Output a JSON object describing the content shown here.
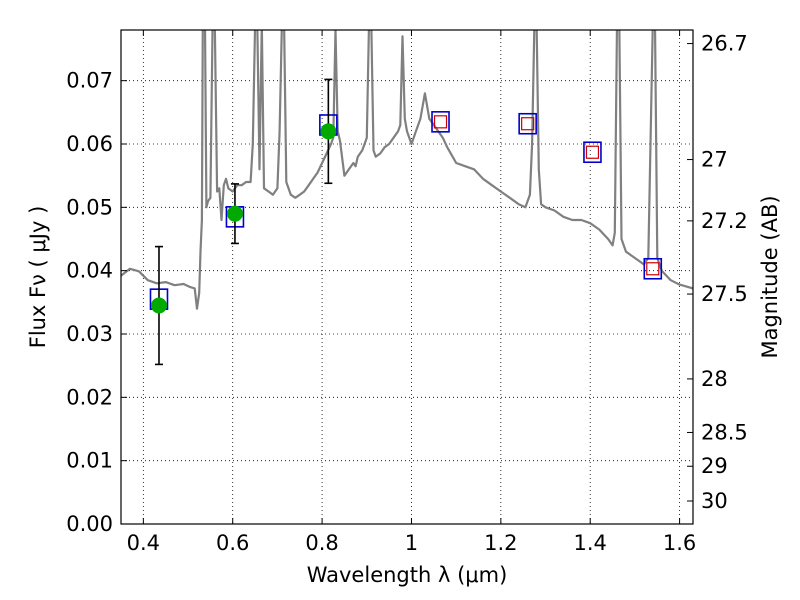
{
  "chart_data": {
    "type": "scatter",
    "xlabel": "Wavelength  λ (μm)",
    "ylabel": "Flux  Fν  ( μJy )",
    "ylabel_right": "Magnitude (AB)",
    "xlim": [
      0.35,
      1.63
    ],
    "ylim": [
      0.0,
      0.078
    ],
    "grid": true,
    "x_ticks": [
      0.4,
      0.6,
      0.8,
      1.0,
      1.2,
      1.4,
      1.6
    ],
    "x_tick_labels": [
      "0.4",
      "0.6",
      "0.8",
      "1",
      "1.2",
      "1.4",
      "1.6"
    ],
    "y_ticks": [
      0.0,
      0.01,
      0.02,
      0.03,
      0.04,
      0.05,
      0.06,
      0.07
    ],
    "y_tick_labels": [
      "0.00",
      "0.01",
      "0.02",
      "0.03",
      "0.04",
      "0.05",
      "0.06",
      "0.07"
    ],
    "right_ticks": [
      {
        "label": "26.7",
        "mag": 26.7
      },
      {
        "label": "27",
        "mag": 27.0
      },
      {
        "label": "27.2",
        "mag": 27.2
      },
      {
        "label": "27.5",
        "mag": 27.5
      },
      {
        "label": "28",
        "mag": 28.0
      },
      {
        "label": "28.5",
        "mag": 28.5
      },
      {
        "label": "29",
        "mag": 29.0
      },
      {
        "label": "30",
        "mag": 30.0
      }
    ],
    "colors": {
      "spectrum": "#808080",
      "observed": "#00aa00",
      "model_box": "#0000cc",
      "model_inner": "#cc0000",
      "errorbar": "#000000"
    },
    "series": [
      {
        "kind": "spectrum",
        "points": [
          [
            0.35,
            0.0392
          ],
          [
            0.37,
            0.0403
          ],
          [
            0.39,
            0.0399
          ],
          [
            0.41,
            0.0385
          ],
          [
            0.43,
            0.038
          ],
          [
            0.45,
            0.0382
          ],
          [
            0.47,
            0.0377
          ],
          [
            0.49,
            0.0379
          ],
          [
            0.505,
            0.0374
          ],
          [
            0.515,
            0.0372
          ],
          [
            0.52,
            0.034
          ],
          [
            0.525,
            0.0365
          ],
          [
            0.528,
            0.043
          ],
          [
            0.531,
            0.048
          ],
          [
            0.533,
            0.079
          ],
          [
            0.538,
            0.079
          ],
          [
            0.541,
            0.05
          ],
          [
            0.545,
            0.051
          ],
          [
            0.55,
            0.0515
          ],
          [
            0.555,
            0.079
          ],
          [
            0.56,
            0.079
          ],
          [
            0.565,
            0.0525
          ],
          [
            0.57,
            0.053
          ],
          [
            0.575,
            0.048
          ],
          [
            0.58,
            0.0535
          ],
          [
            0.585,
            0.0545
          ],
          [
            0.59,
            0.053
          ],
          [
            0.6,
            0.0525
          ],
          [
            0.61,
            0.0535
          ],
          [
            0.62,
            0.0535
          ],
          [
            0.63,
            0.054
          ],
          [
            0.64,
            0.054
          ],
          [
            0.645,
            0.06
          ],
          [
            0.65,
            0.079
          ],
          [
            0.655,
            0.079
          ],
          [
            0.66,
            0.056
          ],
          [
            0.665,
            0.079
          ],
          [
            0.67,
            0.053
          ],
          [
            0.68,
            0.0525
          ],
          [
            0.69,
            0.052
          ],
          [
            0.7,
            0.053
          ],
          [
            0.705,
            0.062
          ],
          [
            0.71,
            0.079
          ],
          [
            0.715,
            0.079
          ],
          [
            0.72,
            0.054
          ],
          [
            0.73,
            0.052
          ],
          [
            0.74,
            0.0515
          ],
          [
            0.75,
            0.052
          ],
          [
            0.76,
            0.0525
          ],
          [
            0.77,
            0.0535
          ],
          [
            0.78,
            0.0545
          ],
          [
            0.79,
            0.0555
          ],
          [
            0.8,
            0.057
          ],
          [
            0.81,
            0.0585
          ],
          [
            0.82,
            0.06
          ],
          [
            0.825,
            0.061
          ],
          [
            0.83,
            0.078
          ],
          [
            0.835,
            0.062
          ],
          [
            0.84,
            0.0605
          ],
          [
            0.85,
            0.055
          ],
          [
            0.86,
            0.056
          ],
          [
            0.87,
            0.057
          ],
          [
            0.875,
            0.0565
          ],
          [
            0.88,
            0.058
          ],
          [
            0.89,
            0.059
          ],
          [
            0.9,
            0.061
          ],
          [
            0.905,
            0.079
          ],
          [
            0.91,
            0.079
          ],
          [
            0.915,
            0.059
          ],
          [
            0.92,
            0.058
          ],
          [
            0.93,
            0.0585
          ],
          [
            0.94,
            0.0595
          ],
          [
            0.95,
            0.06
          ],
          [
            0.96,
            0.061
          ],
          [
            0.97,
            0.062
          ],
          [
            0.975,
            0.063
          ],
          [
            0.98,
            0.077
          ],
          [
            0.985,
            0.064
          ],
          [
            0.99,
            0.062
          ],
          [
            1.0,
            0.06
          ],
          [
            1.01,
            0.062
          ],
          [
            1.02,
            0.064
          ],
          [
            1.03,
            0.068
          ],
          [
            1.04,
            0.064
          ],
          [
            1.05,
            0.063
          ],
          [
            1.06,
            0.062
          ],
          [
            1.07,
            0.061
          ],
          [
            1.08,
            0.0595
          ],
          [
            1.1,
            0.057
          ],
          [
            1.12,
            0.0565
          ],
          [
            1.14,
            0.056
          ],
          [
            1.16,
            0.0545
          ],
          [
            1.18,
            0.0535
          ],
          [
            1.2,
            0.0525
          ],
          [
            1.22,
            0.0515
          ],
          [
            1.24,
            0.0505
          ],
          [
            1.255,
            0.05
          ],
          [
            1.265,
            0.052
          ],
          [
            1.27,
            0.06
          ],
          [
            1.275,
            0.079
          ],
          [
            1.28,
            0.079
          ],
          [
            1.285,
            0.056
          ],
          [
            1.29,
            0.0505
          ],
          [
            1.3,
            0.05
          ],
          [
            1.32,
            0.0495
          ],
          [
            1.34,
            0.0485
          ],
          [
            1.36,
            0.048
          ],
          [
            1.38,
            0.048
          ],
          [
            1.4,
            0.0475
          ],
          [
            1.42,
            0.0465
          ],
          [
            1.44,
            0.045
          ],
          [
            1.45,
            0.044
          ],
          [
            1.455,
            0.046
          ],
          [
            1.46,
            0.079
          ],
          [
            1.465,
            0.079
          ],
          [
            1.47,
            0.045
          ],
          [
            1.48,
            0.043
          ],
          [
            1.5,
            0.042
          ],
          [
            1.52,
            0.041
          ],
          [
            1.53,
            0.042
          ],
          [
            1.54,
            0.079
          ],
          [
            1.545,
            0.079
          ],
          [
            1.55,
            0.042
          ],
          [
            1.56,
            0.04
          ],
          [
            1.58,
            0.0385
          ],
          [
            1.6,
            0.0378
          ],
          [
            1.63,
            0.0372
          ]
        ]
      },
      {
        "kind": "observed",
        "points": [
          {
            "x": 0.435,
            "y": 0.0345,
            "err": 0.0093
          },
          {
            "x": 0.605,
            "y": 0.049,
            "err": 0.0047
          },
          {
            "x": 0.814,
            "y": 0.062,
            "err": 0.0082
          }
        ]
      },
      {
        "kind": "model",
        "points": [
          {
            "x": 0.435,
            "y": 0.0355,
            "inner": false
          },
          {
            "x": 0.605,
            "y": 0.0485,
            "inner": false
          },
          {
            "x": 0.814,
            "y": 0.063,
            "inner": false
          },
          {
            "x": 1.065,
            "y": 0.0635,
            "inner": true
          },
          {
            "x": 1.26,
            "y": 0.0632,
            "inner": true
          },
          {
            "x": 1.405,
            "y": 0.0587,
            "inner": true
          },
          {
            "x": 1.54,
            "y": 0.0403,
            "inner": true
          }
        ]
      }
    ]
  }
}
